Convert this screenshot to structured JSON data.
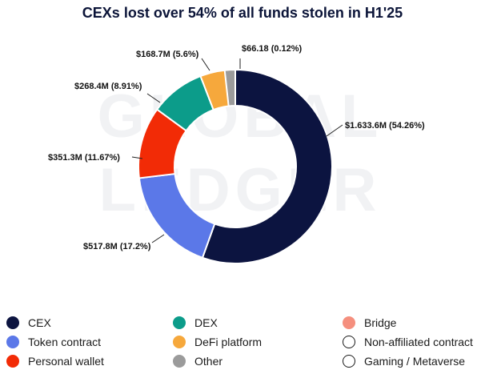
{
  "chart_data": {
    "type": "pie",
    "title": "CEXs lost over 54% of all funds stolen in H1'25",
    "watermark": [
      "GLOBAL",
      "LEDGER"
    ],
    "slices": [
      {
        "name": "CEX",
        "value_label": "$1.633.6M (54.26%)",
        "percent": 54.26,
        "color": "#0c1440"
      },
      {
        "name": "Token contract",
        "value_label": "$517.8M (17.2%)",
        "percent": 17.2,
        "color": "#5b78e8"
      },
      {
        "name": "Personal wallet",
        "value_label": "$351.3M (11.67%)",
        "percent": 11.67,
        "color": "#f22b06"
      },
      {
        "name": "DEX",
        "value_label": "$268.4M (8.91%)",
        "percent": 8.91,
        "color": "#0c9c8a"
      },
      {
        "name": "DeFi platform",
        "value_label": "$168.7M (5.6%)",
        "percent": 5.6,
        "color": "#f6a83c"
      },
      {
        "name": "Other",
        "value_label": "$66.18 (0.12%)",
        "percent": 0.12,
        "color": "#9b9b9b"
      }
    ],
    "legend": [
      {
        "label": "CEX",
        "color": "#0c1440",
        "filled": true
      },
      {
        "label": "Token contract",
        "color": "#5b78e8",
        "filled": true
      },
      {
        "label": "Personal wallet",
        "color": "#f22b06",
        "filled": true
      },
      {
        "label": "DEX",
        "color": "#0c9c8a",
        "filled": true
      },
      {
        "label": "DeFi platform",
        "color": "#f6a83c",
        "filled": true
      },
      {
        "label": "Other",
        "color": "#9b9b9b",
        "filled": true
      },
      {
        "label": "Bridge",
        "color": "#f58f7e",
        "filled": true
      },
      {
        "label": "Non-affiliated contract",
        "color": "#1a1a1a",
        "filled": false
      },
      {
        "label": "Gaming / Metaverse",
        "color": "#1a1a1a",
        "filled": false
      }
    ]
  }
}
